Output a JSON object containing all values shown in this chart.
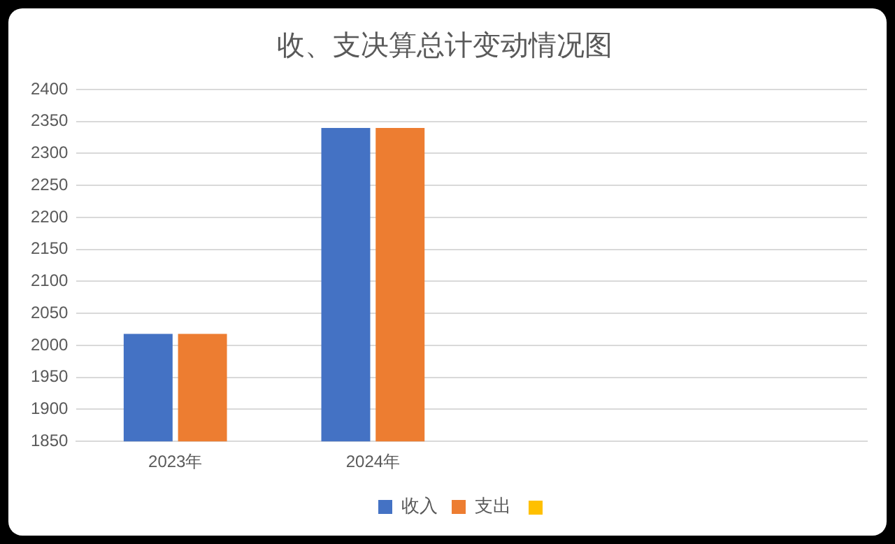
{
  "chart_data": {
    "type": "bar",
    "title": "收、支决算总计变动情况图",
    "categories": [
      "2023年",
      "2024年",
      null,
      null
    ],
    "series": [
      {
        "name": "收入",
        "color": "#4472c4",
        "values": [
          2018,
          2340,
          null,
          null
        ]
      },
      {
        "name": "支出",
        "color": "#ed7d31",
        "values": [
          2018,
          2340,
          null,
          null
        ]
      }
    ],
    "ylim": [
      1850,
      2400
    ],
    "yticks": [
      1850,
      1900,
      1950,
      2000,
      2050,
      2100,
      2150,
      2200,
      2250,
      2300,
      2350,
      2400
    ],
    "grid": "y",
    "legend": "bottom"
  }
}
